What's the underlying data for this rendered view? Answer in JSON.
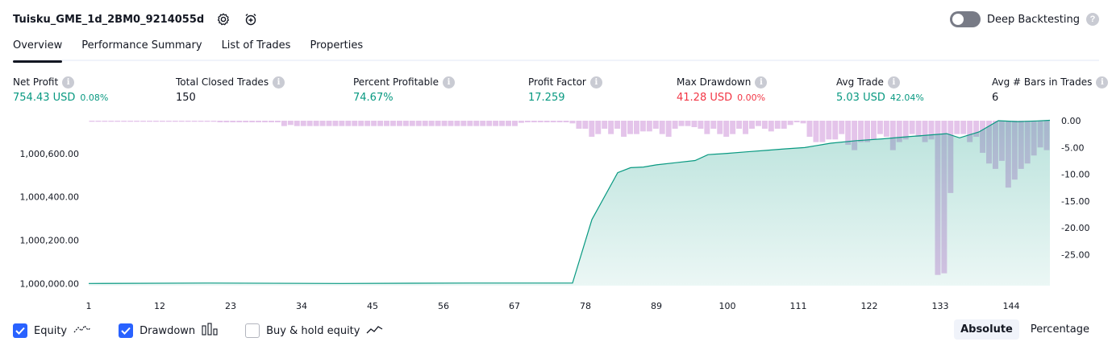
{
  "header": {
    "strategy_name": "Tuisku_GME_1d_2BM0_9214055d",
    "settings_icon": "gear-icon",
    "add_alert_icon": "alarm-clock-plus-icon"
  },
  "deep_backtesting": {
    "label": "Deep Backtesting",
    "enabled": false,
    "help": "?"
  },
  "tabs": [
    {
      "label": "Overview",
      "active": true
    },
    {
      "label": "Performance Summary",
      "active": false
    },
    {
      "label": "List of Trades",
      "active": false
    },
    {
      "label": "Properties",
      "active": false
    }
  ],
  "metrics": [
    {
      "label": "Net Profit",
      "value": "754.43 USD",
      "sub": "0.08%",
      "color": "#089981"
    },
    {
      "label": "Total Closed Trades",
      "value": "150",
      "sub": "",
      "color": "#131722"
    },
    {
      "label": "Percent Profitable",
      "value": "74.67%",
      "sub": "",
      "color": "#089981"
    },
    {
      "label": "Profit Factor",
      "value": "17.259",
      "sub": "",
      "color": "#089981"
    },
    {
      "label": "Max Drawdown",
      "value": "41.28 USD",
      "sub": "0.00%",
      "color": "#f23645"
    },
    {
      "label": "Avg Trade",
      "value": "5.03 USD",
      "sub": "42.04%",
      "color": "#089981"
    },
    {
      "label": "Avg # Bars in Trades",
      "value": "6",
      "sub": "",
      "color": "#131722"
    }
  ],
  "info_glyph": "i",
  "chart_data": {
    "type": "area",
    "x_ticks": [
      "1",
      "12",
      "23",
      "34",
      "45",
      "56",
      "67",
      "78",
      "89",
      "100",
      "111",
      "122",
      "133",
      "144"
    ],
    "x_range": [
      1,
      150
    ],
    "y_left_ticks": [
      "1,000,600.00",
      "1,000,400.00",
      "1,000,200.00",
      "1,000,000.00"
    ],
    "y_left_range": [
      999990,
      1000752
    ],
    "y_right_ticks": [
      "0.00",
      "-5.00",
      "-10.00",
      "-15.00",
      "-20.00",
      "-25.00"
    ],
    "y_right_range": [
      -29,
      0
    ],
    "equity_color": "#089981",
    "drawdown_color": "#ce93d8",
    "equity": [
      [
        1,
        1000000
      ],
      [
        20,
        1000002
      ],
      [
        40,
        1000000
      ],
      [
        60,
        1000002
      ],
      [
        76,
        1000002
      ],
      [
        79,
        1000295
      ],
      [
        83,
        1000512
      ],
      [
        85,
        1000535
      ],
      [
        87,
        1000538
      ],
      [
        89,
        1000548
      ],
      [
        92,
        1000558
      ],
      [
        95,
        1000568
      ],
      [
        97,
        1000595
      ],
      [
        100,
        1000601
      ],
      [
        103,
        1000608
      ],
      [
        106,
        1000615
      ],
      [
        109,
        1000622
      ],
      [
        112,
        1000628
      ],
      [
        116,
        1000648
      ],
      [
        120,
        1000660
      ],
      [
        124,
        1000668
      ],
      [
        128,
        1000678
      ],
      [
        131,
        1000685
      ],
      [
        134,
        1000692
      ],
      [
        136,
        1000673
      ],
      [
        139,
        1000700
      ],
      [
        142,
        1000752
      ],
      [
        145,
        1000748
      ],
      [
        148,
        1000751
      ],
      [
        150,
        1000754
      ]
    ],
    "drawdown": [
      -0.2,
      -0.2,
      -0.2,
      -0.2,
      -0.2,
      -0.2,
      -0.2,
      -0.2,
      -0.2,
      -0.2,
      -0.2,
      -0.2,
      -0.2,
      -0.2,
      -0.2,
      -0.2,
      -0.2,
      -0.2,
      -0.2,
      -0.2,
      -0.3,
      -0.3,
      -0.3,
      -0.3,
      -0.3,
      -0.3,
      -0.3,
      -0.3,
      -0.3,
      -0.3,
      -1.0,
      -0.8,
      -1.0,
      -1.0,
      -1.0,
      -1.0,
      -1.0,
      -1.0,
      -1.0,
      -1.0,
      -1.0,
      -1.0,
      -1.0,
      -1.0,
      -1.0,
      -1.0,
      -1.0,
      -1.0,
      -1.0,
      -1.0,
      -1.0,
      -1.0,
      -1.0,
      -1.0,
      -1.0,
      -1.0,
      -1.0,
      -1.0,
      -1.0,
      -1.0,
      -1.0,
      -1.0,
      -1.0,
      -1.0,
      -1.0,
      -1.0,
      -1.0,
      -0.4,
      -0.3,
      -0.3,
      -0.3,
      -0.3,
      -0.3,
      -0.3,
      -0.3,
      -0.5,
      -1.5,
      -1.5,
      -3.0,
      -2.5,
      -1.5,
      -2.5,
      -1.5,
      -3.0,
      -2.5,
      -2.5,
      -2.0,
      -2.0,
      -1.5,
      -2.5,
      -3.0,
      -1.5,
      -1.0,
      -1.0,
      -1.2,
      -1.5,
      -2.5,
      -1.5,
      -2.5,
      -3.0,
      -2.5,
      -1.5,
      -2.5,
      -1.5,
      -1.0,
      -1.5,
      -2.0,
      -1.5,
      -1.5,
      -0.8,
      -0.3,
      -0.5,
      -3.0,
      -4.0,
      -4.0,
      -3.5,
      -3.5,
      -2.5,
      -4.5,
      -5.5,
      -4.0,
      -4.0,
      -3.5,
      -2.5,
      -3.0,
      -5.5,
      -4.0,
      -3.5,
      -2.5,
      -3.0,
      -4.0,
      -3.5,
      -28.8,
      -28.5,
      -13.5,
      -2.5,
      -2.5,
      -4.0,
      -3.0,
      -6.0,
      -8.0,
      -9.0,
      -7.5,
      -12.5,
      -11.0,
      -9.0,
      -8.0,
      -6.5,
      -5.0,
      -5.5
    ]
  },
  "footer": {
    "equity": {
      "label": "Equity",
      "checked": true,
      "icon": "equity-line-icon"
    },
    "drawdown": {
      "label": "Drawdown",
      "checked": true,
      "icon": "drawdown-bars-icon"
    },
    "buy_hold": {
      "label": "Buy & hold equity",
      "checked": false,
      "icon": "buy-hold-line-icon"
    }
  },
  "view_modes": [
    {
      "label": "Absolute",
      "active": true
    },
    {
      "label": "Percentage",
      "active": false
    }
  ]
}
